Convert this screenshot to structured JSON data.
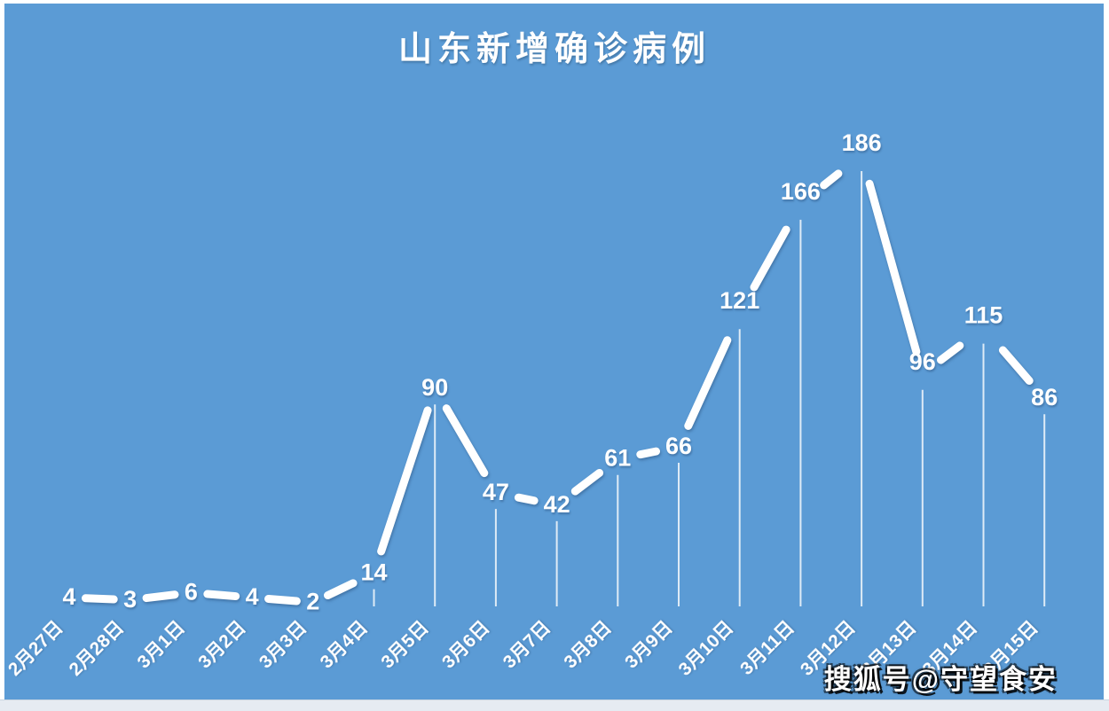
{
  "chart_data": {
    "type": "line",
    "title": "山东新增确诊病例",
    "categories": [
      "2月27日",
      "2月28日",
      "3月1日",
      "3月2日",
      "3月3日",
      "3月4日",
      "3月5日",
      "3月6日",
      "3月7日",
      "3月8日",
      "3月9日",
      "3月10日",
      "3月11日",
      "3月12日",
      "3月13日",
      "3月14日",
      "3月15日"
    ],
    "values": [
      4,
      3,
      6,
      4,
      2,
      14,
      90,
      47,
      42,
      61,
      66,
      121,
      166,
      186,
      96,
      115,
      86
    ],
    "xlabel": "",
    "ylabel": "",
    "ylim": [
      0,
      200
    ],
    "grid": false,
    "legend": false,
    "data_labels": true,
    "colors": {
      "background": "#5b9bd5",
      "line": "#ffffff",
      "label_text": "#ffffff",
      "axis_text": "#ffffff",
      "frame": "#ffffff"
    }
  },
  "watermark": {
    "text": "搜狐号@守望食安"
  }
}
